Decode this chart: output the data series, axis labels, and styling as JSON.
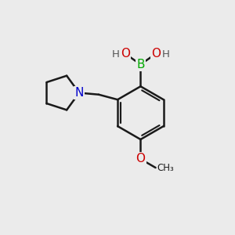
{
  "bg_color": "#ebebeb",
  "bond_color": "#1a1a1a",
  "B_color": "#00aa00",
  "O_color": "#cc0000",
  "N_color": "#0000cc",
  "H_color": "#555555",
  "bond_width": 1.8,
  "figw": 3.0,
  "figh": 3.0,
  "dpi": 100,
  "xlim": [
    0,
    10
  ],
  "ylim": [
    0,
    10
  ]
}
